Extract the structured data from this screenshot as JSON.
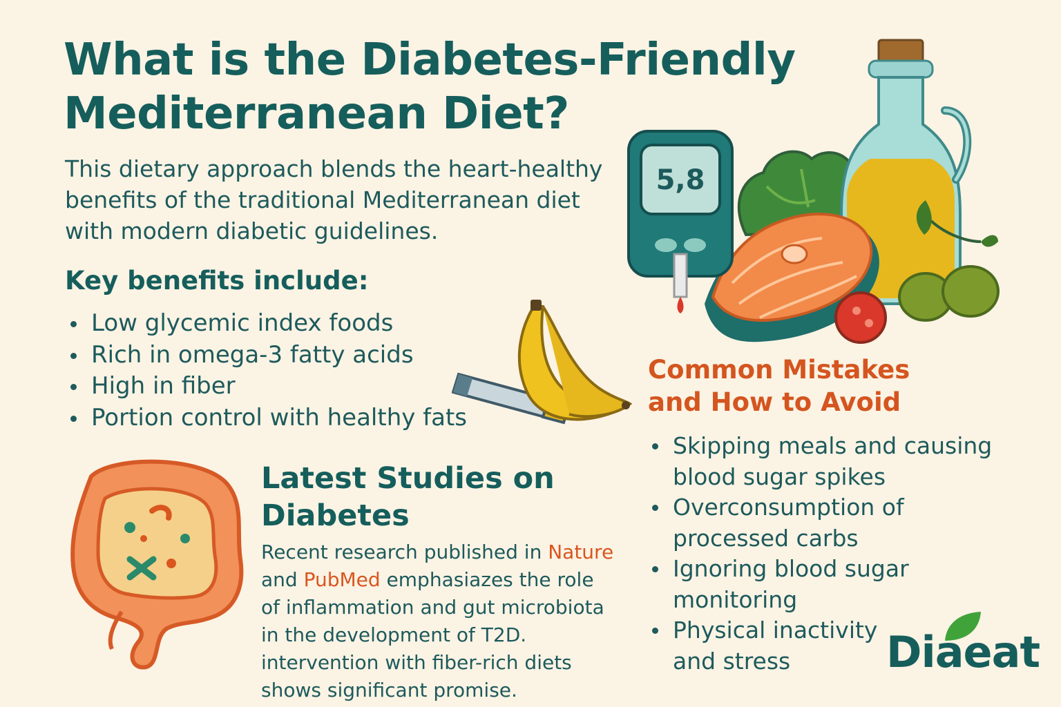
{
  "title": {
    "line1": "What is the Diabetes-Friendly",
    "line2": "Mediterranean Diet?"
  },
  "intro": {
    "line1": "This dietary approach blends the heart-healthy",
    "line2": "benefits of the traditional Mediterranean diet",
    "line3": "with modern diabetic guidelines."
  },
  "benefits": {
    "heading": "Key benefits include:",
    "items": [
      "Low glycemic index foods",
      "Rich in omega-3 fatty acids",
      "High in fiber",
      "Portion control with healthy fats"
    ]
  },
  "studies": {
    "heading_line1": "Latest Studies on",
    "heading_line2": "Diabetes",
    "body_pre": "Recent research published in ",
    "source1": "Nature",
    "body_and": "and ",
    "source2": "PubMed",
    "body_after": " emphasiazes the role",
    "line3": "of inflammation and gut microbiota",
    "line4": "in the development of T2D.",
    "line5": "intervention with fiber-rich diets",
    "line6": "shows significant promise."
  },
  "mistakes": {
    "heading_line1": "Common Mistakes",
    "heading_line2": "and How to Avoid",
    "items": [
      {
        "line1": "Skipping meals and causing",
        "line2": "blood sugar spikes"
      },
      {
        "line1": "Overconsumption of",
        "line2": "processed carbs"
      },
      {
        "line1": "Ignoring blood sugar",
        "line2": "monitoring"
      },
      {
        "line1": "Physical inactivity",
        "line2": "and stress"
      }
    ]
  },
  "glucometer": {
    "reading": "5,8"
  },
  "brand": {
    "name": "Diaeat"
  },
  "colors": {
    "background": "#fbf3e4",
    "heading": "#155e5c",
    "accent": "#d4551f",
    "leaf": "#3fa33a"
  },
  "icons": [
    "glucometer-icon",
    "olive-oil-bottle-icon",
    "salmon-steak-icon",
    "lettuce-icon",
    "tomato-icon",
    "olives-icon",
    "banana-icon",
    "insulin-pen-icon",
    "gut-icon",
    "leaf-icon"
  ]
}
